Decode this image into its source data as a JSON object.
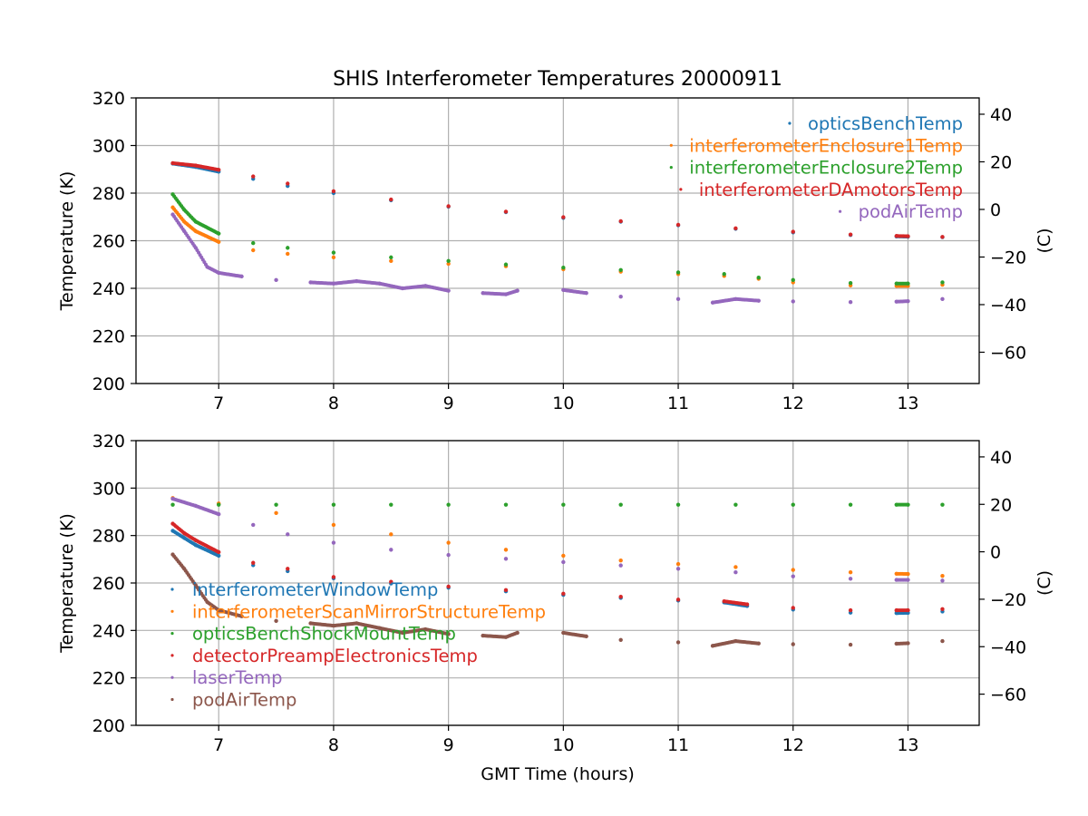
{
  "figure": {
    "title": "SHIS Interferometer Temperatures 20000911"
  },
  "chart_data": [
    {
      "type": "scatter",
      "panel": "top",
      "title": "SHIS Interferometer Temperatures 20000911",
      "xlabel": "",
      "ylabel": "Temperature (K)",
      "ylabel_right": "(C)",
      "xlim": [
        6.28,
        13.62
      ],
      "ylim": [
        200,
        320
      ],
      "ylim_right_C": [
        -73.15,
        46.85
      ],
      "x_ticks": [
        7,
        8,
        9,
        10,
        11,
        12,
        13
      ],
      "y_ticks": [
        200,
        220,
        240,
        260,
        280,
        300,
        320
      ],
      "y_ticks_right": [
        -60,
        -40,
        -20,
        0,
        20,
        40
      ],
      "grid": true,
      "legend_position": "upper-right",
      "series": [
        {
          "name": "opticsBenchTemp",
          "color": "#1f77b4",
          "points": [
            [
              6.6,
              292.4
            ],
            [
              6.8,
              291.0
            ],
            [
              7.0,
              289.0
            ],
            [
              7.3,
              286.0
            ],
            [
              7.6,
              283.0
            ],
            [
              8.0,
              280.0
            ],
            [
              8.5,
              277.0
            ],
            [
              9.0,
              274.3
            ],
            [
              9.5,
              272.0
            ],
            [
              10.0,
              269.6
            ],
            [
              10.5,
              268.0
            ],
            [
              11.0,
              266.5
            ],
            [
              11.5,
              265.0
            ],
            [
              12.0,
              263.5
            ],
            [
              12.5,
              262.4
            ],
            [
              12.9,
              261.8
            ],
            [
              13.0,
              261.7
            ],
            [
              13.3,
              261.5
            ]
          ]
        },
        {
          "name": "interferometerEnclosure1Temp",
          "color": "#ff7f0e",
          "points": [
            [
              6.6,
              274.0
            ],
            [
              6.7,
              268.0
            ],
            [
              6.8,
              264.0
            ],
            [
              7.0,
              259.5
            ],
            [
              7.3,
              256.0
            ],
            [
              7.6,
              254.5
            ],
            [
              8.0,
              253.0
            ],
            [
              8.5,
              251.5
            ],
            [
              9.0,
              250.3
            ],
            [
              9.5,
              249.3
            ],
            [
              10.0,
              248.0
            ],
            [
              10.5,
              247.0
            ],
            [
              11.0,
              246.0
            ],
            [
              11.4,
              245.2
            ],
            [
              11.7,
              244.0
            ],
            [
              12.0,
              242.5
            ],
            [
              12.5,
              241.2
            ],
            [
              12.9,
              241.0
            ],
            [
              13.0,
              241.0
            ],
            [
              13.3,
              241.5
            ]
          ]
        },
        {
          "name": "interferometerEnclosure2Temp",
          "color": "#2ca02c",
          "points": [
            [
              6.6,
              279.5
            ],
            [
              6.7,
              273.0
            ],
            [
              6.8,
              268.0
            ],
            [
              7.0,
              263.0
            ],
            [
              7.3,
              259.0
            ],
            [
              7.6,
              257.0
            ],
            [
              8.0,
              255.0
            ],
            [
              8.5,
              253.0
            ],
            [
              9.0,
              251.5
            ],
            [
              9.5,
              250.0
            ],
            [
              10.0,
              248.7
            ],
            [
              10.5,
              247.7
            ],
            [
              11.0,
              246.7
            ],
            [
              11.4,
              246.0
            ],
            [
              11.7,
              244.5
            ],
            [
              12.0,
              243.5
            ],
            [
              12.5,
              242.2
            ],
            [
              12.9,
              242.0
            ],
            [
              13.0,
              242.0
            ],
            [
              13.3,
              242.5
            ]
          ]
        },
        {
          "name": "interferometerDAmotorsTemp",
          "color": "#d62728",
          "points": [
            [
              6.6,
              292.6
            ],
            [
              6.8,
              291.6
            ],
            [
              7.0,
              289.8
            ],
            [
              7.3,
              287.0
            ],
            [
              7.6,
              284.0
            ],
            [
              8.0,
              280.8
            ],
            [
              8.5,
              277.3
            ],
            [
              9.0,
              274.5
            ],
            [
              9.5,
              272.2
            ],
            [
              10.0,
              269.9
            ],
            [
              10.5,
              268.2
            ],
            [
              11.0,
              266.7
            ],
            [
              11.5,
              265.2
            ],
            [
              12.0,
              263.8
            ],
            [
              12.5,
              262.6
            ],
            [
              12.9,
              262.0
            ],
            [
              13.0,
              261.9
            ],
            [
              13.3,
              261.6
            ]
          ]
        },
        {
          "name": "podAirTemp",
          "color": "#9467bd",
          "points": [
            [
              6.6,
              271.0
            ],
            [
              6.7,
              264.0
            ],
            [
              6.8,
              257.0
            ],
            [
              6.9,
              249.0
            ],
            [
              7.0,
              246.5
            ],
            [
              7.2,
              245.0
            ],
            [
              7.5,
              243.5
            ],
            [
              7.8,
              242.5
            ],
            [
              8.0,
              242.0
            ],
            [
              8.2,
              243.0
            ],
            [
              8.4,
              242.0
            ],
            [
              8.6,
              240.0
            ],
            [
              8.8,
              241.0
            ],
            [
              9.0,
              239.0
            ],
            [
              9.3,
              238.0
            ],
            [
              9.5,
              237.5
            ],
            [
              9.6,
              239.0
            ],
            [
              10.0,
              239.3
            ],
            [
              10.2,
              238.0
            ],
            [
              10.5,
              236.5
            ],
            [
              11.0,
              235.5
            ],
            [
              11.3,
              234.0
            ],
            [
              11.5,
              235.5
            ],
            [
              11.7,
              234.8
            ],
            [
              12.0,
              234.5
            ],
            [
              12.5,
              234.2
            ],
            [
              12.9,
              234.4
            ],
            [
              13.0,
              234.6
            ],
            [
              13.3,
              235.5
            ]
          ]
        }
      ]
    },
    {
      "type": "scatter",
      "panel": "bottom",
      "title": "",
      "xlabel": "GMT Time (hours)",
      "ylabel": "Temperature (K)",
      "ylabel_right": "(C)",
      "xlim": [
        6.28,
        13.62
      ],
      "ylim": [
        200,
        320
      ],
      "ylim_right_C": [
        -73.15,
        46.85
      ],
      "x_ticks": [
        7,
        8,
        9,
        10,
        11,
        12,
        13
      ],
      "y_ticks": [
        200,
        220,
        240,
        260,
        280,
        300,
        320
      ],
      "y_ticks_right": [
        -60,
        -40,
        -20,
        0,
        20,
        40
      ],
      "grid": true,
      "legend_position": "lower-left",
      "series": [
        {
          "name": "interferometerWindowTemp",
          "color": "#1f77b4",
          "points": [
            [
              6.6,
              282.0
            ],
            [
              6.7,
              279.0
            ],
            [
              6.8,
              276.0
            ],
            [
              7.0,
              271.5
            ],
            [
              7.3,
              267.5
            ],
            [
              7.6,
              265.0
            ],
            [
              8.0,
              262.0
            ],
            [
              8.5,
              259.8
            ],
            [
              9.0,
              258.0
            ],
            [
              9.5,
              256.5
            ],
            [
              10.0,
              255.0
            ],
            [
              10.5,
              253.7
            ],
            [
              11.0,
              252.6
            ],
            [
              11.4,
              251.8
            ],
            [
              11.6,
              250.3
            ],
            [
              12.0,
              248.8
            ],
            [
              12.5,
              247.5
            ],
            [
              12.9,
              247.3
            ],
            [
              13.0,
              247.4
            ],
            [
              13.3,
              248.0
            ]
          ]
        },
        {
          "name": "interferometerScanMirrorStructureTemp",
          "color": "#ff7f0e",
          "points": [
            [
              6.6,
              295.8
            ],
            [
              7.0,
              293.5
            ],
            [
              7.5,
              289.5
            ],
            [
              8.0,
              284.5
            ],
            [
              8.5,
              280.5
            ],
            [
              9.0,
              277.0
            ],
            [
              9.5,
              274.0
            ],
            [
              10.0,
              271.5
            ],
            [
              10.5,
              269.5
            ],
            [
              11.0,
              268.0
            ],
            [
              11.5,
              266.7
            ],
            [
              12.0,
              265.5
            ],
            [
              12.5,
              264.5
            ],
            [
              12.9,
              263.9
            ],
            [
              13.0,
              263.8
            ],
            [
              13.3,
              263.0
            ]
          ]
        },
        {
          "name": "opticsBenchShockMountTemp",
          "color": "#2ca02c",
          "points": [
            [
              6.6,
              293.0
            ],
            [
              7.0,
              293.0
            ],
            [
              7.5,
              293.0
            ],
            [
              8.0,
              293.0
            ],
            [
              8.5,
              293.0
            ],
            [
              9.0,
              293.0
            ],
            [
              9.5,
              293.0
            ],
            [
              10.0,
              293.0
            ],
            [
              10.5,
              293.0
            ],
            [
              11.0,
              293.0
            ],
            [
              11.5,
              293.0
            ],
            [
              12.0,
              293.0
            ],
            [
              12.5,
              293.0
            ],
            [
              12.9,
              293.0
            ],
            [
              13.0,
              293.0
            ],
            [
              13.3,
              293.0
            ]
          ]
        },
        {
          "name": "detectorPreampElectronicsTemp",
          "color": "#d62728",
          "points": [
            [
              6.6,
              285.0
            ],
            [
              6.7,
              281.0
            ],
            [
              6.8,
              278.0
            ],
            [
              7.0,
              273.0
            ],
            [
              7.3,
              268.5
            ],
            [
              7.6,
              266.0
            ],
            [
              8.0,
              262.5
            ],
            [
              8.5,
              260.5
            ],
            [
              9.0,
              258.5
            ],
            [
              9.5,
              257.0
            ],
            [
              10.0,
              255.5
            ],
            [
              10.5,
              254.2
            ],
            [
              11.0,
              253.0
            ],
            [
              11.4,
              252.3
            ],
            [
              11.6,
              251.0
            ],
            [
              12.0,
              249.5
            ],
            [
              12.5,
              248.5
            ],
            [
              12.9,
              248.5
            ],
            [
              13.0,
              248.5
            ],
            [
              13.3,
              249.0
            ]
          ]
        },
        {
          "name": "laserTemp",
          "color": "#9467bd",
          "points": [
            [
              6.6,
              295.5
            ],
            [
              6.8,
              292.5
            ],
            [
              7.0,
              289.0
            ],
            [
              7.3,
              284.5
            ],
            [
              7.6,
              280.5
            ],
            [
              8.0,
              277.0
            ],
            [
              8.5,
              274.0
            ],
            [
              9.0,
              271.8
            ],
            [
              9.5,
              270.2
            ],
            [
              10.0,
              268.8
            ],
            [
              10.5,
              267.4
            ],
            [
              11.0,
              266.0
            ],
            [
              11.5,
              264.5
            ],
            [
              12.0,
              262.8
            ],
            [
              12.5,
              261.8
            ],
            [
              12.9,
              261.3
            ],
            [
              13.0,
              261.3
            ],
            [
              13.3,
              261.0
            ]
          ]
        },
        {
          "name": "podAirTemp",
          "color": "#8c564b",
          "points": [
            [
              6.6,
              272.0
            ],
            [
              6.7,
              266.0
            ],
            [
              6.8,
              259.0
            ],
            [
              6.9,
              252.0
            ],
            [
              7.0,
              248.5
            ],
            [
              7.2,
              246.0
            ],
            [
              7.5,
              244.0
            ],
            [
              7.8,
              243.0
            ],
            [
              8.0,
              242.0
            ],
            [
              8.2,
              243.0
            ],
            [
              8.4,
              241.0
            ],
            [
              8.6,
              239.0
            ],
            [
              8.8,
              240.5
            ],
            [
              9.0,
              238.5
            ],
            [
              9.3,
              237.8
            ],
            [
              9.5,
              237.2
            ],
            [
              9.6,
              239.0
            ],
            [
              10.0,
              239.0
            ],
            [
              10.2,
              237.5
            ],
            [
              10.5,
              236.0
            ],
            [
              11.0,
              235.0
            ],
            [
              11.3,
              233.5
            ],
            [
              11.5,
              235.5
            ],
            [
              11.7,
              234.5
            ],
            [
              12.0,
              234.2
            ],
            [
              12.5,
              234.0
            ],
            [
              12.9,
              234.4
            ],
            [
              13.0,
              234.6
            ],
            [
              13.3,
              235.5
            ]
          ]
        }
      ]
    }
  ]
}
